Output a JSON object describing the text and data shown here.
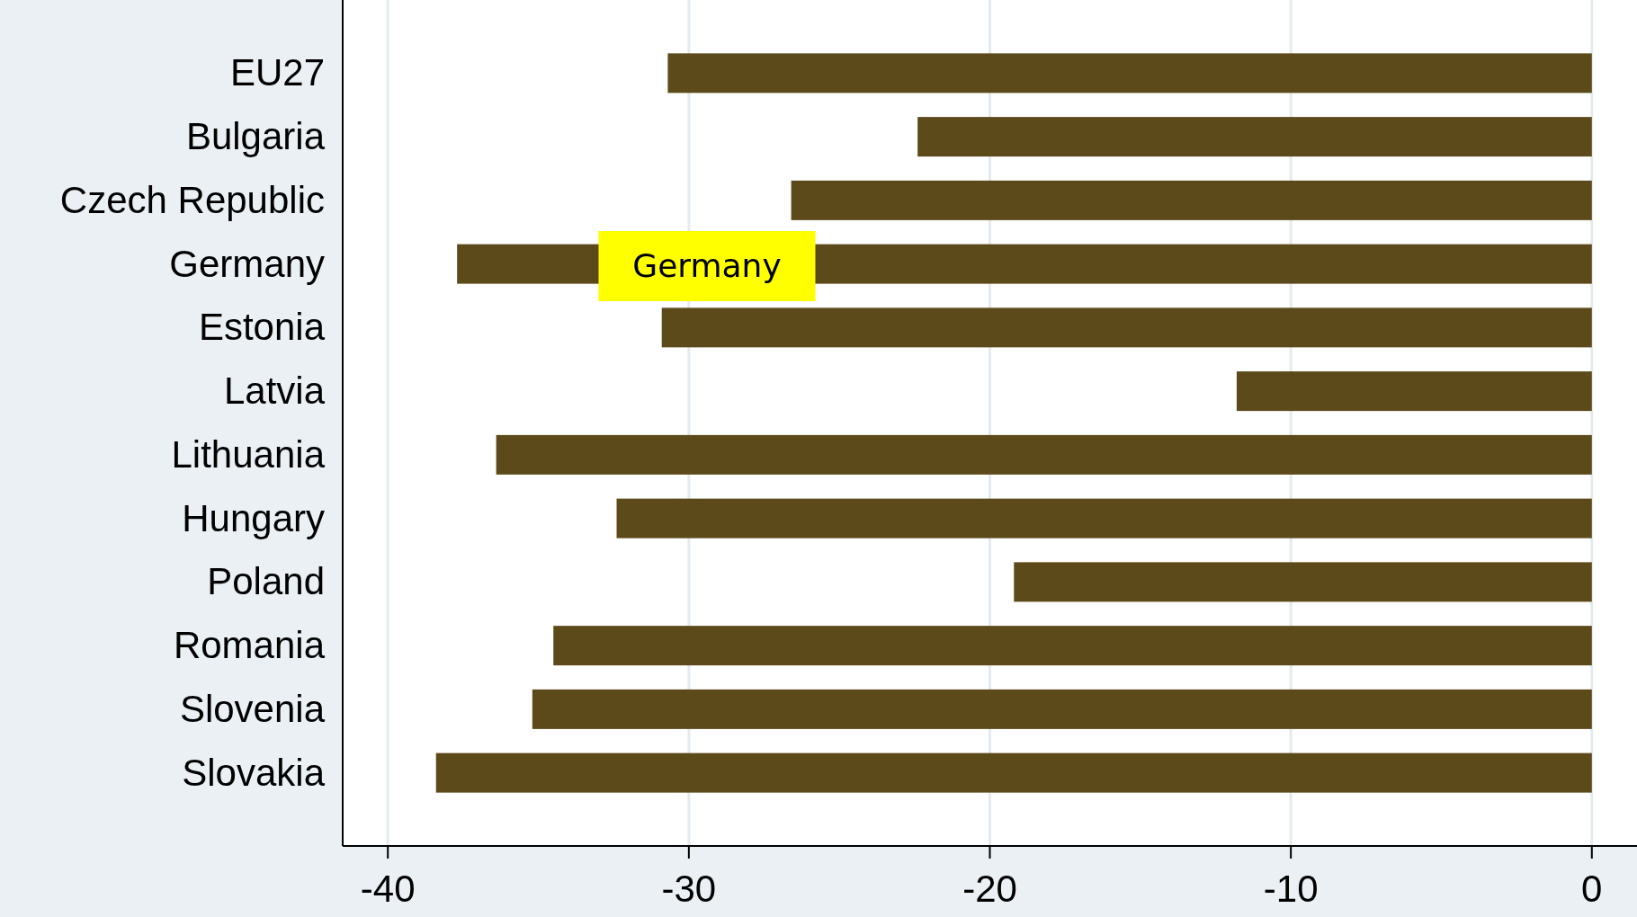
{
  "chart_data": {
    "type": "bar",
    "orientation": "horizontal",
    "categories": [
      "EU27",
      "Bulgaria",
      "Czech Republic",
      "Germany",
      "Estonia",
      "Latvia",
      "Lithuania",
      "Hungary",
      "Poland",
      "Romania",
      "Slovenia",
      "Slovakia"
    ],
    "values": [
      -30.7,
      -22.4,
      -26.6,
      -37.7,
      -30.9,
      -11.8,
      -36.4,
      -32.4,
      -19.2,
      -34.5,
      -35.2,
      -38.4
    ],
    "color": "#5c4a1a",
    "xlim": [
      -41.5,
      1.5
    ],
    "xticks": [
      -40,
      -30,
      -20,
      -10,
      0
    ],
    "grid": "x",
    "annotations": [
      "Germany"
    ]
  }
}
